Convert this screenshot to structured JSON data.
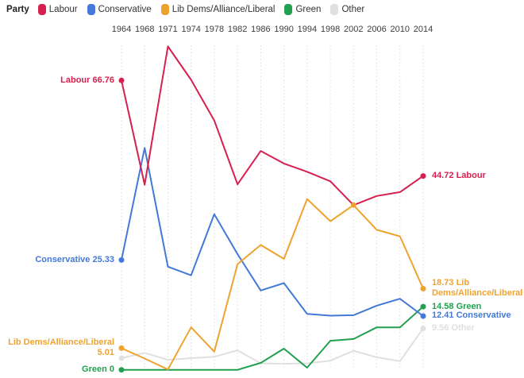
{
  "legend": {
    "title": "Party",
    "items": [
      {
        "label": "Labour",
        "color": "#d6204f"
      },
      {
        "label": "Conservative",
        "color": "#4379d8"
      },
      {
        "label": "Lib Dems/Alliance/Liberal",
        "color": "#efa32f"
      },
      {
        "label": "Green",
        "color": "#21a04f"
      },
      {
        "label": "Other",
        "color": "#e0e0e0"
      }
    ]
  },
  "chart_data": {
    "type": "line",
    "title": "",
    "xlabel": "",
    "ylabel": "",
    "x": [
      1964,
      1968,
      1971,
      1974,
      1978,
      1982,
      1986,
      1990,
      1994,
      1998,
      2002,
      2006,
      2010,
      2014
    ],
    "ylim": [
      0,
      80
    ],
    "grid": "vertical-dotted",
    "legend_position": "top-left",
    "x_axis_position": "top",
    "series": [
      {
        "name": "Labour",
        "color": "#d6204f",
        "values": [
          66.76,
          42.7,
          74.6,
          66.9,
          57.5,
          42.8,
          50.5,
          47.6,
          45.7,
          43.5,
          38.0,
          40.1,
          41.0,
          44.72
        ],
        "start_label_lines": [
          "Labour 66.76"
        ],
        "end_label_lines": [
          "44.72 Labour"
        ],
        "marker_indices": [
          0,
          13
        ]
      },
      {
        "name": "Conservative",
        "color": "#4379d8",
        "values": [
          25.33,
          51.2,
          23.8,
          21.8,
          35.9,
          26.7,
          18.3,
          20.0,
          12.9,
          12.5,
          12.6,
          14.8,
          16.4,
          12.41
        ],
        "start_label_lines": [
          "Conservative 25.33"
        ],
        "end_label_lines": [
          "12.41 Conservative"
        ],
        "marker_indices": [
          0,
          13
        ]
      },
      {
        "name": "Lib Dems/Alliance/Liberal",
        "color": "#efa32f",
        "values": [
          5.01,
          2.6,
          0.1,
          9.8,
          4.2,
          24.4,
          28.8,
          25.6,
          39.4,
          34.3,
          38.0,
          32.3,
          30.8,
          18.73
        ],
        "start_label_lines": [
          "Lib Dems/Alliance/Liberal",
          "5.01"
        ],
        "end_label_lines": [
          "18.73 Lib",
          "Dems/Alliance/Liberal"
        ],
        "marker_indices": [
          0,
          10,
          13
        ]
      },
      {
        "name": "Green",
        "color": "#21a04f",
        "values": [
          0,
          0,
          0,
          0,
          0,
          0,
          1.6,
          4.9,
          0.5,
          6.7,
          7.1,
          9.8,
          9.8,
          14.58
        ],
        "start_label_lines": [
          "Green 0"
        ],
        "end_label_lines": [
          "14.58 Green"
        ],
        "marker_indices": [
          0,
          13
        ]
      },
      {
        "name": "Other",
        "color": "#e0e0e0",
        "values": [
          2.7,
          3.9,
          2.3,
          2.7,
          3.0,
          4.5,
          1.5,
          1.4,
          1.5,
          2.1,
          4.4,
          2.9,
          2.0,
          9.56
        ],
        "start_label_lines": [],
        "end_label_lines": [
          "9.56 Other"
        ],
        "marker_indices": [
          0,
          13
        ]
      }
    ]
  }
}
